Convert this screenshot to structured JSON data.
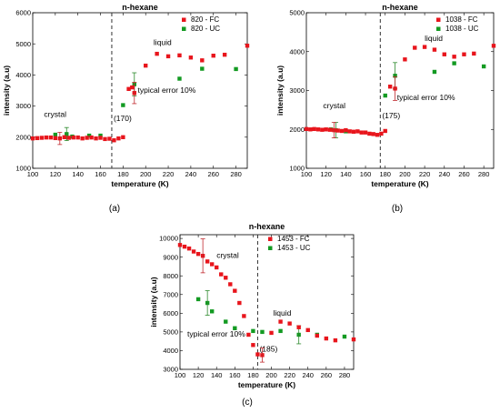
{
  "colors": {
    "fc": "#e8151c",
    "uc": "#139a22",
    "error_fc": "#c0282d",
    "error_uc": "#2c8a2c"
  },
  "chart_data": [
    {
      "type": "scatter",
      "caption": "(a)",
      "title": "n-hexane",
      "xlabel": "temperature (K)",
      "ylabel": "intensity (a.u)",
      "xlim": [
        100,
        290
      ],
      "ylim": [
        1000,
        6000
      ],
      "xticks": [
        100,
        120,
        140,
        160,
        180,
        200,
        220,
        240,
        260,
        280
      ],
      "yticks": [
        1000,
        2000,
        3000,
        4000,
        5000,
        6000
      ],
      "grid": false,
      "legend_position": "top-right",
      "vline": {
        "x": 170,
        "label": "(170)"
      },
      "annotations": [
        {
          "text": "crystal",
          "x": 110,
          "y": 2650
        },
        {
          "text": "liquid",
          "x": 207,
          "y": 4960
        },
        {
          "text": "typical error 10%",
          "x": 193,
          "y": 3420
        }
      ],
      "series": [
        {
          "name": "820 - FC",
          "color": "#e8151c",
          "x": [
            100,
            104,
            108,
            112,
            116,
            120,
            124,
            128,
            132,
            136,
            140,
            144,
            148,
            152,
            156,
            160,
            164,
            168,
            172,
            176,
            180,
            185,
            188,
            190,
            200,
            210,
            220,
            230,
            240,
            250,
            260,
            270,
            290
          ],
          "y": [
            1960,
            1970,
            1980,
            1990,
            1990,
            1970,
            1960,
            2000,
            1980,
            1990,
            1990,
            1960,
            1980,
            1990,
            1960,
            1980,
            1940,
            1950,
            1900,
            1960,
            2000,
            3550,
            3600,
            3420,
            4300,
            4680,
            4600,
            4630,
            4560,
            4470,
            4620,
            4650,
            4940
          ],
          "errors": [
            {
              "x": 124,
              "y": 1960,
              "e": 196
            },
            {
              "x": 190,
              "y": 3420,
              "e": 342
            }
          ]
        },
        {
          "name": "820 - UC",
          "color": "#139a22",
          "x": [
            120,
            130,
            135,
            150,
            160,
            180,
            190,
            230,
            250,
            280
          ],
          "y": [
            2080,
            2100,
            2020,
            2050,
            2050,
            3030,
            3700,
            3880,
            4200,
            4190
          ],
          "errors": [
            {
              "x": 130,
              "y": 2100,
              "e": 210
            },
            {
              "x": 190,
              "y": 3700,
              "e": 370
            }
          ]
        }
      ]
    },
    {
      "type": "scatter",
      "caption": "(b)",
      "title": "n-hexane",
      "xlabel": "temperature (K)",
      "ylabel": "intensity (a.u)",
      "xlim": [
        100,
        290
      ],
      "ylim": [
        1000,
        5000
      ],
      "xticks": [
        100,
        120,
        140,
        160,
        180,
        200,
        220,
        240,
        260,
        280
      ],
      "yticks": [
        1000,
        2000,
        3000,
        4000,
        5000
      ],
      "grid": false,
      "legend_position": "top-right",
      "vline": {
        "x": 175,
        "label": "(175)"
      },
      "annotations": [
        {
          "text": "crystal",
          "x": 117,
          "y": 2540
        },
        {
          "text": "liquid",
          "x": 220,
          "y": 4270
        },
        {
          "text": "typical error 10%",
          "x": 192,
          "y": 2750
        }
      ],
      "series": [
        {
          "name": "1038 - FC",
          "color": "#e8151c",
          "x": [
            100,
            104,
            108,
            112,
            116,
            120,
            124,
            128,
            132,
            136,
            140,
            144,
            148,
            152,
            156,
            160,
            164,
            168,
            172,
            176,
            180,
            185,
            190,
            200,
            210,
            220,
            230,
            240,
            250,
            260,
            270,
            290
          ],
          "y": [
            2010,
            2000,
            2010,
            2000,
            1990,
            2000,
            1990,
            1980,
            1970,
            1960,
            1980,
            1950,
            1940,
            1950,
            1920,
            1920,
            1890,
            1880,
            1860,
            1890,
            1960,
            3100,
            3050,
            3800,
            4100,
            4120,
            4050,
            3930,
            3870,
            3930,
            3950,
            4150
          ],
          "errors": [
            {
              "x": 128,
              "y": 1980,
              "e": 198
            },
            {
              "x": 190,
              "y": 3050,
              "e": 305
            }
          ]
        },
        {
          "name": "1038 - UC",
          "color": "#139a22",
          "x": [
            125,
            130,
            140,
            180,
            190,
            230,
            250,
            280
          ],
          "y": [
            2000,
            1980,
            1950,
            2870,
            3380,
            3480,
            3700,
            3620
          ],
          "errors": [
            {
              "x": 130,
              "y": 1980,
              "e": 198
            },
            {
              "x": 190,
              "y": 3380,
              "e": 338
            }
          ]
        }
      ]
    },
    {
      "type": "scatter",
      "caption": "(c)",
      "title": "n-hexane",
      "xlabel": "temperature (K)",
      "ylabel": "intensity (a.u)",
      "xlim": [
        100,
        290
      ],
      "ylim": [
        3000,
        10200
      ],
      "xticks": [
        100,
        120,
        140,
        160,
        180,
        200,
        220,
        240,
        260,
        280
      ],
      "yticks": [
        3000,
        4000,
        5000,
        6000,
        7000,
        8000,
        9000,
        10000
      ],
      "grid": false,
      "legend_position": "top-right",
      "vline": {
        "x": 185,
        "label": "(185)"
      },
      "annotations": [
        {
          "text": "crystal",
          "x": 140,
          "y": 8950
        },
        {
          "text": "liquid",
          "x": 202,
          "y": 5870
        },
        {
          "text": "typical error 10%",
          "x": 108,
          "y": 4750
        }
      ],
      "series": [
        {
          "name": "1453 - FC",
          "color": "#e8151c",
          "x": [
            100,
            105,
            110,
            115,
            120,
            125,
            130,
            135,
            140,
            145,
            150,
            155,
            160,
            165,
            170,
            175,
            180,
            185,
            190,
            200,
            210,
            220,
            230,
            240,
            250,
            260,
            270,
            290
          ],
          "y": [
            9650,
            9560,
            9460,
            9300,
            9170,
            9070,
            8770,
            8620,
            8450,
            8080,
            7900,
            7550,
            7200,
            6550,
            5850,
            4850,
            4300,
            3800,
            3760,
            4950,
            5550,
            5450,
            5250,
            5100,
            4800,
            4650,
            4550,
            4600
          ],
          "errors": [
            {
              "x": 125,
              "y": 9070,
              "e": 907
            },
            {
              "x": 190,
              "y": 3760,
              "e": 376
            }
          ]
        },
        {
          "name": "1453 - UC",
          "color": "#139a22",
          "x": [
            120,
            130,
            135,
            150,
            160,
            180,
            190,
            210,
            230,
            250,
            280
          ],
          "y": [
            6750,
            6550,
            6100,
            5550,
            5200,
            5050,
            5000,
            5050,
            4850,
            4850,
            4750
          ],
          "errors": [
            {
              "x": 130,
              "y": 6550,
              "e": 655
            },
            {
              "x": 230,
              "y": 4850,
              "e": 485
            }
          ]
        }
      ]
    }
  ]
}
